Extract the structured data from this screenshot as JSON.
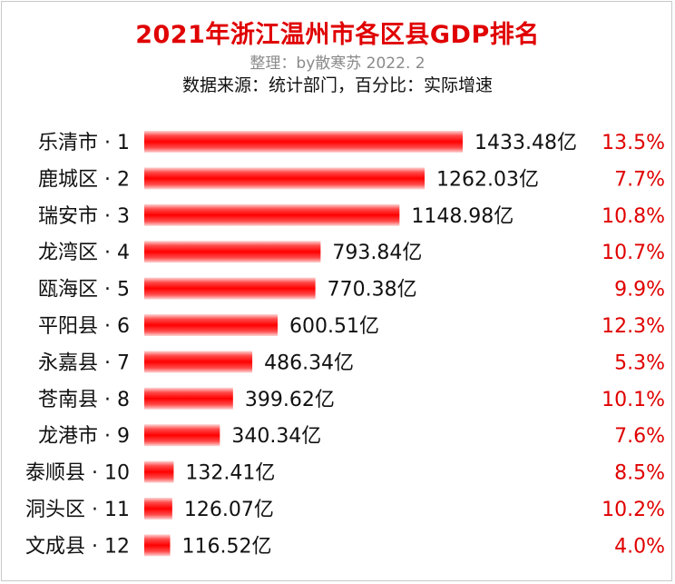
{
  "header": {
    "title": "2021年浙江温州市各区县GDP排名",
    "subtitle": "整理：by散寒苏  2022. 2",
    "source": "数据来源：统计部门，百分比：实际增速"
  },
  "colors": {
    "title": "#e00000",
    "bar": "#ff0000",
    "growth": "#e00000",
    "text": "#111111"
  },
  "chart_data": {
    "type": "bar",
    "orientation": "horizontal",
    "categories": [
      "乐清市 · 1",
      "鹿城区 · 2",
      "瑞安市 · 3",
      "龙湾区 · 4",
      "瓯海区 · 5",
      "平阳县 · 6",
      "永嘉县 · 7",
      "苍南县 · 8",
      "龙港市 · 9",
      "泰顺县 · 10",
      "洞头区 · 11",
      "文成县 · 12"
    ],
    "values": [
      1433.48,
      1262.03,
      1148.98,
      793.84,
      770.38,
      600.51,
      486.34,
      399.62,
      340.34,
      132.41,
      126.07,
      116.52
    ],
    "value_labels": [
      "1433.48亿",
      "1262.03亿",
      "1148.98亿",
      "793.84亿",
      "770.38亿",
      "600.51亿",
      "486.34亿",
      "399.62亿",
      "340.34亿",
      "132.41亿",
      "126.07亿",
      "116.52亿"
    ],
    "growth_labels": [
      "13.5%",
      "7.7%",
      "10.8%",
      "10.7%",
      "9.9%",
      "12.3%",
      "5.3%",
      "10.1%",
      "7.6%",
      "8.5%",
      "10.2%",
      "4.0%"
    ],
    "unit": "亿",
    "xlim": [
      0,
      1433.48
    ],
    "grid": false,
    "legend": "none"
  }
}
